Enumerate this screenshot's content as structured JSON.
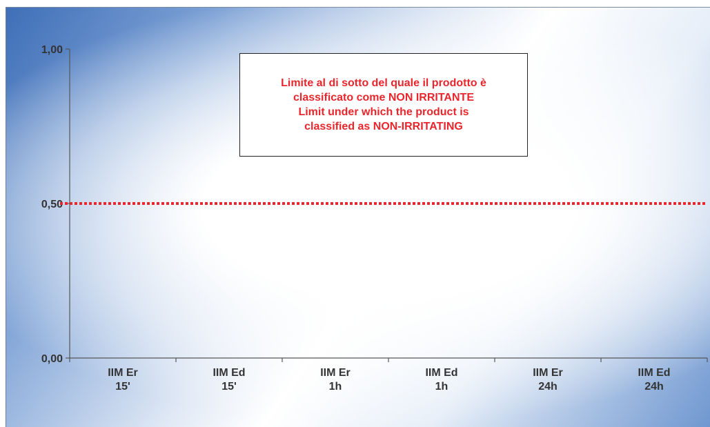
{
  "chart_data": {
    "type": "line",
    "categories": [
      "IIM Er\n15'",
      "IIM Ed\n15'",
      "IIM Er\n1h",
      "IIM Ed\n1h",
      "IIM Er\n24h",
      "IIM Ed\n24h"
    ],
    "y_ticks": [
      "1,00",
      "0,50",
      "0,00"
    ],
    "y_tick_values": [
      1.0,
      0.5,
      0.0
    ],
    "ylim": [
      0,
      1
    ],
    "series": [
      {
        "values": [
          0.5,
          0.5,
          0.5,
          0.5,
          0.5,
          0.5
        ],
        "color": "#e8262c",
        "style": "dotted"
      }
    ],
    "annotation": {
      "lines": [
        "Limite al di sotto del quale il prodotto è",
        "classificato come NON IRRITANTE",
        "Limit under which the product is",
        "classified as NON-IRRITATING"
      ],
      "color": "#e8262c"
    },
    "grid": false
  }
}
